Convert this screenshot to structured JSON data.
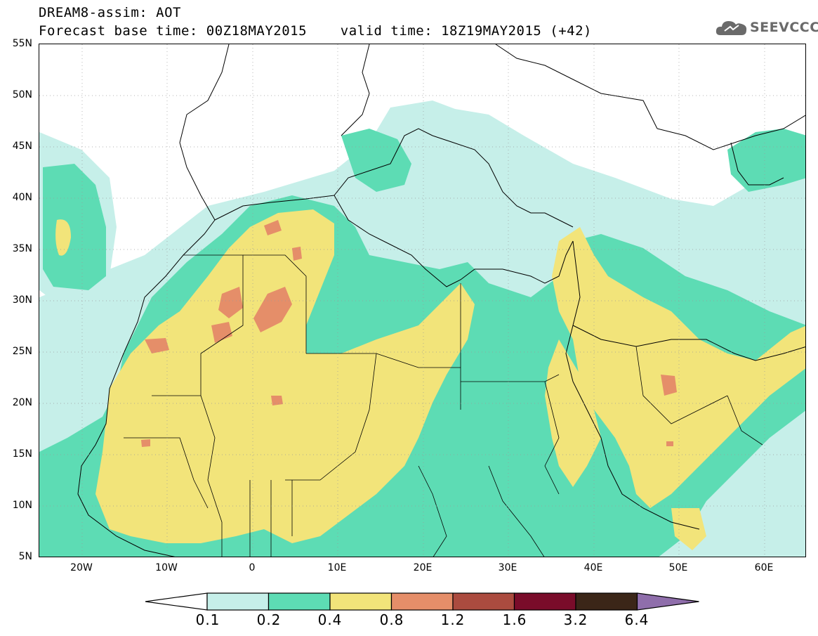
{
  "header": {
    "line1": "DREAM8-assim: AOT",
    "line2": "Forecast base time: 00Z18MAY2015    valid time: 18Z19MAY2015 (+42)"
  },
  "logo": {
    "text": "SEEVCCC",
    "icon": "cloud-icon"
  },
  "map": {
    "lon_range": [
      -25,
      65
    ],
    "lat_range": [
      5,
      55
    ],
    "lat_labels": [
      "55N",
      "50N",
      "45N",
      "40N",
      "35N",
      "30N",
      "25N",
      "20N",
      "15N",
      "10N",
      "5N"
    ],
    "lon_labels": [
      "20W",
      "10W",
      "0",
      "10E",
      "20E",
      "30E",
      "40E",
      "50E",
      "60E"
    ]
  },
  "legend": {
    "levels": [
      "0.1",
      "0.2",
      "0.4",
      "0.8",
      "1.2",
      "1.6",
      "3.2",
      "6.4"
    ],
    "colors": [
      "#ffffff",
      "#c6efe9",
      "#5ddcb4",
      "#f2e47a",
      "#e58e69",
      "#ab4b3f",
      "#7a0c2a",
      "#3b2618",
      "#8f6eab"
    ]
  }
}
